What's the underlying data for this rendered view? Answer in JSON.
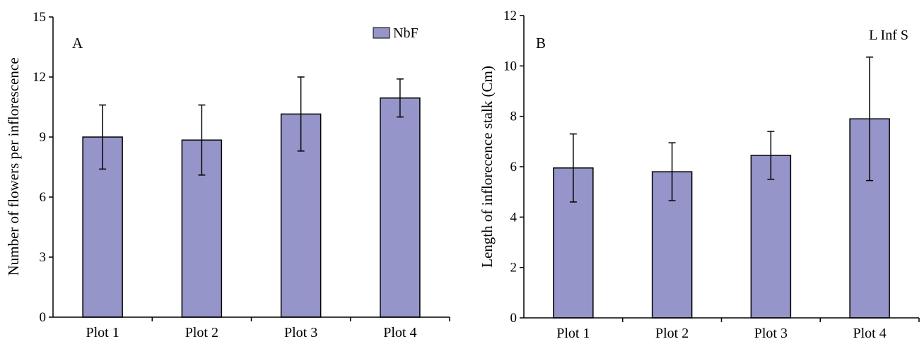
{
  "chart_data": [
    {
      "type": "bar",
      "panel_label": "A",
      "categories": [
        "Plot 1",
        "Plot 2",
        "Plot 3",
        "Plot 4"
      ],
      "series": [
        {
          "name": "NbF",
          "values": [
            9.0,
            8.85,
            10.15,
            10.95
          ],
          "error": [
            1.6,
            1.75,
            1.85,
            0.95
          ]
        }
      ],
      "xlabel": "",
      "ylabel": "Number of flowers per inflorescence",
      "ylim": [
        0,
        15
      ],
      "yticks": [
        0,
        3,
        6,
        9,
        12,
        15
      ],
      "grid": false,
      "legend_position": "top-right",
      "bar_color": "#9695c9"
    },
    {
      "type": "bar",
      "panel_label": "B",
      "categories": [
        "Plot 1",
        "Plot 2",
        "Plot 3",
        "Plot 4"
      ],
      "series": [
        {
          "name": "L Inf S",
          "values": [
            5.95,
            5.8,
            6.45,
            7.9
          ],
          "error": [
            1.35,
            1.15,
            0.95,
            2.45
          ]
        }
      ],
      "xlabel": "",
      "ylabel": "Length of inflorecence stalk (Cm)",
      "ylim": [
        0,
        12
      ],
      "yticks": [
        0,
        2,
        4,
        6,
        8,
        10,
        12
      ],
      "grid": false,
      "legend_position": "top-right",
      "bar_color": "#9695c9"
    }
  ]
}
